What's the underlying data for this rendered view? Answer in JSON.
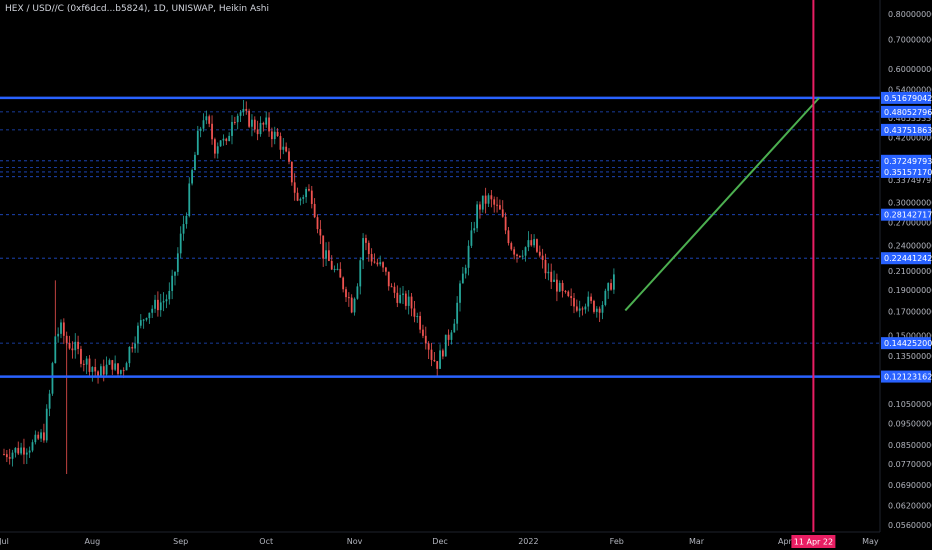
{
  "header": {
    "title": "HEX / USD//C (0xf6dcd...b5824), 1D, UNISWAP, Heikin Ashi"
  },
  "chart_data": {
    "type": "candlestick",
    "scale": "log",
    "ylim": [
      0.054,
      0.86
    ],
    "colors": {
      "up": "#26a69a",
      "down": "#ef5350",
      "level_line": "#2962ff",
      "dashed_level": "#2962ff",
      "trend_line": "#4caf50",
      "vertical_marker": "#e91e63",
      "label_bg": "#2962ff"
    },
    "y_ticks": [
      "0.80000000",
      "0.70000000",
      "0.60000000",
      "0.54000000",
      "0.46535331",
      "0.42000000",
      "0.33749793",
      "0.30000000",
      "0.27000000",
      "0.24000000",
      "0.21000000",
      "0.19000000",
      "0.17000000",
      "0.15000000",
      "0.13500000",
      "0.10500000",
      "0.09500000",
      "0.08500000",
      "0.07700000",
      "0.06900000",
      "0.06200000",
      "0.05600000"
    ],
    "y_tick_values": [
      0.8,
      0.7,
      0.6,
      0.54,
      0.46535331,
      0.42,
      0.33749793,
      0.3,
      0.27,
      0.24,
      0.21,
      0.19,
      0.17,
      0.15,
      0.135,
      0.105,
      0.095,
      0.085,
      0.077,
      0.069,
      0.062,
      0.056
    ],
    "x_ticks": [
      {
        "label": "Jul",
        "day": 0
      },
      {
        "label": "Aug",
        "day": 31
      },
      {
        "label": "Sep",
        "day": 62
      },
      {
        "label": "Oct",
        "day": 92
      },
      {
        "label": "Nov",
        "day": 123
      },
      {
        "label": "Dec",
        "day": 153
      },
      {
        "label": "2022",
        "day": 184
      },
      {
        "label": "Feb",
        "day": 215
      },
      {
        "label": "Mar",
        "day": 243
      },
      {
        "label": "Apr",
        "day": 274
      },
      {
        "label": "May",
        "day": 304
      }
    ],
    "solid_levels": [
      {
        "label": "0.51679042",
        "value": 0.51679042
      },
      {
        "label": "0.12123162",
        "value": 0.12123162
      }
    ],
    "dashed_levels": [
      {
        "label": "0.48052796",
        "value": 0.48052796
      },
      {
        "label": "0.43751863",
        "value": 0.43751863
      },
      {
        "label": "0.37249793",
        "value": 0.37249793
      },
      {
        "label": "0.35157170",
        "value": 0.3515717
      },
      {
        "label": "0.28142717",
        "value": 0.28142717
      },
      {
        "label": "0.22441242",
        "value": 0.22441242
      },
      {
        "label": "0.14425200",
        "value": 0.144252
      }
    ],
    "extra_dashed_values": [
      0.36,
      0.343
    ],
    "trend_line": {
      "from": {
        "day": 218,
        "value": 0.171
      },
      "to": {
        "day": 286,
        "value": 0.51679042
      }
    },
    "vertical_marker": {
      "label": "11 Apr 22",
      "day": 284
    },
    "candle_path": [
      [
        0,
        0.081
      ],
      [
        5,
        0.083
      ],
      [
        10,
        0.085
      ],
      [
        14,
        0.09
      ],
      [
        16,
        0.11
      ],
      [
        18,
        0.15
      ],
      [
        20,
        0.155
      ],
      [
        22,
        0.145
      ],
      [
        25,
        0.14
      ],
      [
        28,
        0.132
      ],
      [
        31,
        0.128
      ],
      [
        33,
        0.122
      ],
      [
        35,
        0.126
      ],
      [
        38,
        0.13
      ],
      [
        40,
        0.123
      ],
      [
        42,
        0.128
      ],
      [
        44,
        0.14
      ],
      [
        47,
        0.155
      ],
      [
        50,
        0.17
      ],
      [
        53,
        0.175
      ],
      [
        56,
        0.18
      ],
      [
        58,
        0.185
      ],
      [
        60,
        0.21
      ],
      [
        62,
        0.25
      ],
      [
        64,
        0.29
      ],
      [
        66,
        0.35
      ],
      [
        68,
        0.42
      ],
      [
        70,
        0.47
      ],
      [
        72,
        0.44
      ],
      [
        74,
        0.4
      ],
      [
        76,
        0.42
      ],
      [
        78,
        0.4
      ],
      [
        80,
        0.47
      ],
      [
        83,
        0.48
      ],
      [
        86,
        0.46
      ],
      [
        89,
        0.44
      ],
      [
        92,
        0.45
      ],
      [
        94,
        0.43
      ],
      [
        96,
        0.42
      ],
      [
        99,
        0.38
      ],
      [
        101,
        0.34
      ],
      [
        103,
        0.3
      ],
      [
        106,
        0.32
      ],
      [
        108,
        0.31
      ],
      [
        110,
        0.27
      ],
      [
        112,
        0.23
      ],
      [
        114,
        0.22
      ],
      [
        116,
        0.21
      ],
      [
        118,
        0.2
      ],
      [
        120,
        0.19
      ],
      [
        122,
        0.175
      ],
      [
        124,
        0.2
      ],
      [
        126,
        0.25
      ],
      [
        128,
        0.23
      ],
      [
        130,
        0.22
      ],
      [
        132,
        0.215
      ],
      [
        134,
        0.205
      ],
      [
        136,
        0.19
      ],
      [
        138,
        0.185
      ],
      [
        140,
        0.18
      ],
      [
        142,
        0.178
      ],
      [
        144,
        0.17
      ],
      [
        146,
        0.16
      ],
      [
        148,
        0.15
      ],
      [
        150,
        0.135
      ],
      [
        152,
        0.13
      ],
      [
        154,
        0.14
      ],
      [
        156,
        0.15
      ],
      [
        158,
        0.165
      ],
      [
        160,
        0.19
      ],
      [
        162,
        0.22
      ],
      [
        164,
        0.25
      ],
      [
        166,
        0.29
      ],
      [
        168,
        0.3
      ],
      [
        170,
        0.305
      ],
      [
        172,
        0.295
      ],
      [
        174,
        0.285
      ],
      [
        176,
        0.26
      ],
      [
        178,
        0.24
      ],
      [
        180,
        0.23
      ],
      [
        182,
        0.235
      ],
      [
        184,
        0.24
      ],
      [
        186,
        0.24
      ],
      [
        188,
        0.225
      ],
      [
        190,
        0.21
      ],
      [
        192,
        0.2
      ],
      [
        194,
        0.195
      ],
      [
        196,
        0.185
      ],
      [
        198,
        0.18
      ],
      [
        200,
        0.175
      ],
      [
        202,
        0.178
      ],
      [
        204,
        0.18
      ],
      [
        206,
        0.176
      ],
      [
        208,
        0.174
      ],
      [
        210,
        0.178
      ],
      [
        212,
        0.19
      ],
      [
        214,
        0.205
      ]
    ]
  }
}
